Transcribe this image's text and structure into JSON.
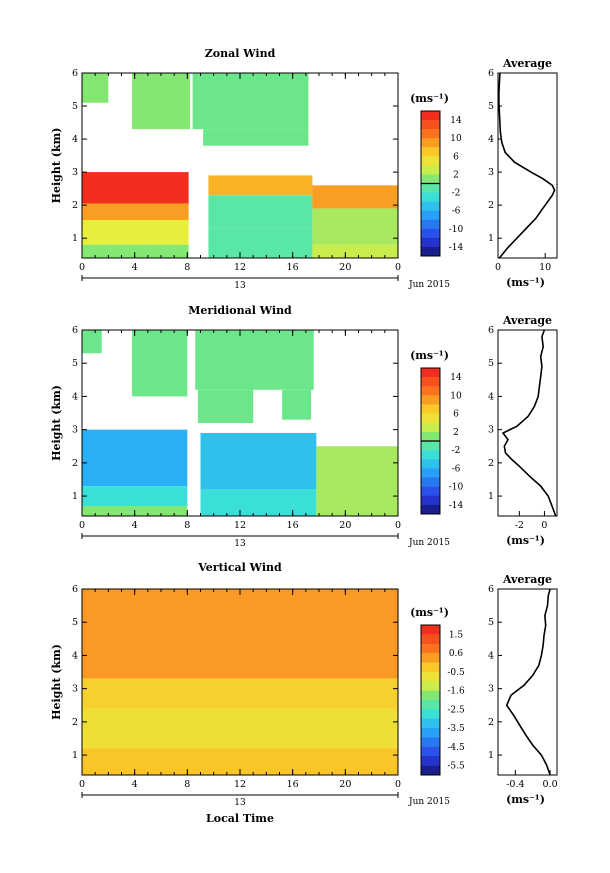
{
  "figure": {
    "bottom_xlabel": "Local Time"
  },
  "chart_data": [
    {
      "type": "heatmap",
      "title": "Zonal Wind",
      "ylabel": "Height (km)",
      "xlabel": "",
      "x_ticks": [
        "0",
        "4",
        "8",
        "12",
        "16",
        "20",
        "0"
      ],
      "x_range": [
        0,
        24
      ],
      "y_ticks": [
        "1",
        "2",
        "3",
        "4",
        "5",
        "6"
      ],
      "ylim": [
        0.4,
        6.0
      ],
      "date_day": "13",
      "date_label": "Jun 2015",
      "colorbar": {
        "unit": "(ms⁻¹)",
        "ticks": [
          "14",
          "10",
          "6",
          "2",
          "-2",
          "-6",
          "-10",
          "-14"
        ],
        "range": [
          -16,
          16
        ]
      },
      "regions": [
        {
          "x": [
            0.0,
            8.1
          ],
          "y": [
            2.05,
            3.0
          ],
          "value": 15
        },
        {
          "x": [
            0.0,
            8.1
          ],
          "y": [
            1.55,
            2.05
          ],
          "value": 9
        },
        {
          "x": [
            0.0,
            8.1
          ],
          "y": [
            0.8,
            1.55
          ],
          "value": 4
        },
        {
          "x": [
            0.0,
            8.1
          ],
          "y": [
            0.4,
            0.8
          ],
          "value": 1
        },
        {
          "x": [
            9.6,
            17.5
          ],
          "y": [
            2.3,
            2.9
          ],
          "value": 8
        },
        {
          "x": [
            9.6,
            17.5
          ],
          "y": [
            1.3,
            2.3
          ],
          "value": -1
        },
        {
          "x": [
            9.6,
            17.5
          ],
          "y": [
            0.4,
            1.3
          ],
          "value": -1
        },
        {
          "x": [
            17.5,
            24.0
          ],
          "y": [
            1.9,
            2.6
          ],
          "value": 9
        },
        {
          "x": [
            17.5,
            24.0
          ],
          "y": [
            0.8,
            1.9
          ],
          "value": 2
        },
        {
          "x": [
            17.5,
            24.0
          ],
          "y": [
            0.4,
            0.8
          ],
          "value": 3
        },
        {
          "x": [
            0.0,
            2.0
          ],
          "y": [
            5.1,
            6.0
          ],
          "value": 1
        },
        {
          "x": [
            3.8,
            8.2
          ],
          "y": [
            4.3,
            6.0
          ],
          "value": 1
        },
        {
          "x": [
            8.4,
            17.2
          ],
          "y": [
            4.3,
            6.0
          ],
          "value": 0
        },
        {
          "x": [
            9.2,
            17.2
          ],
          "y": [
            3.8,
            4.3
          ],
          "value": 0
        }
      ],
      "profile": {
        "title": "Average",
        "xlabel": "(ms⁻¹)",
        "x_ticks": [
          "0",
          "10"
        ],
        "xlim": [
          0,
          12.5
        ],
        "height": [
          0.4,
          0.7,
          1.0,
          1.3,
          1.6,
          1.9,
          2.1,
          2.3,
          2.45,
          2.6,
          2.8,
          3.0,
          3.3,
          3.6,
          3.9,
          4.2,
          4.5,
          4.8,
          5.1,
          5.4,
          5.7,
          6.0
        ],
        "value": [
          0.3,
          2.0,
          4.0,
          6.0,
          8.0,
          9.5,
          10.5,
          11.5,
          12.0,
          11.5,
          9.5,
          7.0,
          3.5,
          1.5,
          0.8,
          0.5,
          0.4,
          0.3,
          0.2,
          0.2,
          0.3,
          0.4
        ]
      }
    },
    {
      "type": "heatmap",
      "title": "Meridional Wind",
      "ylabel": "Height (km)",
      "xlabel": "",
      "x_ticks": [
        "0",
        "4",
        "8",
        "12",
        "16",
        "20",
        "0"
      ],
      "x_range": [
        0,
        24
      ],
      "y_ticks": [
        "1",
        "2",
        "3",
        "4",
        "5",
        "6"
      ],
      "ylim": [
        0.4,
        6.0
      ],
      "date_day": "13",
      "date_label": "Jun 2015",
      "colorbar": {
        "unit": "(ms⁻¹)",
        "ticks": [
          "14",
          "10",
          "6",
          "2",
          "-2",
          "-6",
          "-10",
          "-14"
        ],
        "range": [
          -16,
          16
        ]
      },
      "regions": [
        {
          "x": [
            0.0,
            8.0
          ],
          "y": [
            1.3,
            3.0
          ],
          "value": -6
        },
        {
          "x": [
            0.0,
            8.0
          ],
          "y": [
            0.7,
            1.3
          ],
          "value": -3
        },
        {
          "x": [
            0.0,
            8.0
          ],
          "y": [
            0.4,
            0.7
          ],
          "value": 1
        },
        {
          "x": [
            9.0,
            17.8
          ],
          "y": [
            1.2,
            2.9
          ],
          "value": -5
        },
        {
          "x": [
            9.0,
            17.8
          ],
          "y": [
            0.4,
            1.2
          ],
          "value": -3
        },
        {
          "x": [
            17.8,
            24.0
          ],
          "y": [
            0.4,
            2.5
          ],
          "value": 2
        },
        {
          "x": [
            0.0,
            1.5
          ],
          "y": [
            5.3,
            6.0
          ],
          "value": 0
        },
        {
          "x": [
            3.8,
            8.0
          ],
          "y": [
            4.0,
            6.0
          ],
          "value": 0
        },
        {
          "x": [
            8.6,
            17.6
          ],
          "y": [
            4.2,
            6.0
          ],
          "value": 0
        },
        {
          "x": [
            8.8,
            13.0
          ],
          "y": [
            3.2,
            4.2
          ],
          "value": 0
        },
        {
          "x": [
            15.2,
            17.4
          ],
          "y": [
            3.3,
            4.2
          ],
          "value": 0
        }
      ],
      "profile": {
        "title": "Average",
        "xlabel": "(ms⁻¹)",
        "x_ticks": [
          "-2",
          "0"
        ],
        "xlim": [
          -3.7,
          1.0
        ],
        "height": [
          0.4,
          0.7,
          1.0,
          1.3,
          1.6,
          1.9,
          2.1,
          2.3,
          2.5,
          2.7,
          2.9,
          3.1,
          3.4,
          3.7,
          4.0,
          4.3,
          4.6,
          4.9,
          5.2,
          5.5,
          5.8,
          6.0
        ],
        "value": [
          0.9,
          0.6,
          0.3,
          -0.3,
          -1.2,
          -2.0,
          -2.6,
          -3.1,
          -3.2,
          -2.9,
          -3.3,
          -2.2,
          -1.3,
          -0.8,
          -0.5,
          -0.4,
          -0.3,
          -0.2,
          -0.3,
          -0.1,
          -0.2,
          0.0
        ]
      }
    },
    {
      "type": "heatmap",
      "title": "Vertical Wind",
      "ylabel": "Height (km)",
      "xlabel": "",
      "x_ticks": [
        "0",
        "4",
        "8",
        "12",
        "16",
        "20",
        "0"
      ],
      "x_range": [
        0,
        24
      ],
      "y_ticks": [
        "1",
        "2",
        "3",
        "4",
        "5",
        "6"
      ],
      "ylim": [
        0.4,
        6.0
      ],
      "date_day": "13",
      "date_label": "Jun 2015",
      "colorbar": {
        "unit": "(ms⁻¹)",
        "ticks": [
          "1.5",
          "0.6",
          "-0.5",
          "-1.6",
          "-2.5",
          "-3.5",
          "-4.5",
          "-5.5"
        ],
        "range": [
          -6.0,
          2.0
        ]
      },
      "regions": [
        {
          "x": [
            0.0,
            24.0
          ],
          "y": [
            3.3,
            6.0
          ],
          "value": 0.3
        },
        {
          "x": [
            0.0,
            24.0
          ],
          "y": [
            2.4,
            3.3
          ],
          "value": -0.4
        },
        {
          "x": [
            0.0,
            24.0
          ],
          "y": [
            1.2,
            2.4
          ],
          "value": -0.7
        },
        {
          "x": [
            0.0,
            24.0
          ],
          "y": [
            0.4,
            1.2
          ],
          "value": -0.2
        }
      ],
      "profile": {
        "title": "Average",
        "xlabel": "(ms⁻¹)",
        "x_ticks": [
          "-0.4",
          "0.0"
        ],
        "xlim": [
          -0.6,
          0.08
        ],
        "height": [
          0.4,
          0.7,
          1.0,
          1.3,
          1.6,
          1.9,
          2.2,
          2.5,
          2.8,
          3.1,
          3.4,
          3.7,
          4.0,
          4.3,
          4.6,
          4.9,
          5.2,
          5.5,
          5.8,
          6.0
        ],
        "value": [
          0.0,
          -0.04,
          -0.1,
          -0.2,
          -0.28,
          -0.35,
          -0.42,
          -0.5,
          -0.45,
          -0.3,
          -0.2,
          -0.13,
          -0.1,
          -0.08,
          -0.07,
          -0.05,
          -0.06,
          -0.03,
          -0.02,
          0.0
        ]
      }
    }
  ]
}
